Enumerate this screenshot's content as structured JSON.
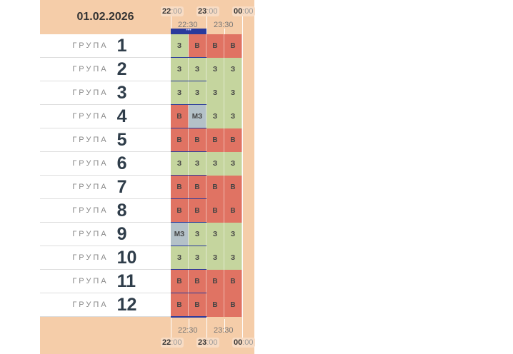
{
  "date": "01.02.2026",
  "hours": [
    {
      "h": "22",
      "m": ":00"
    },
    {
      "h": "23",
      "m": ":00"
    },
    {
      "h": "00",
      "m": ":00"
    }
  ],
  "halves": [
    "22:30",
    "23:30"
  ],
  "more_indicator": "•••",
  "group_word": "ГРУПА",
  "colors": {
    "З": "#c5d59e",
    "В": "#e07363",
    "МЗ": "#b4c1c8"
  },
  "groups": [
    {
      "n": "1",
      "cells": [
        "З",
        "В",
        "В",
        "В"
      ]
    },
    {
      "n": "2",
      "cells": [
        "З",
        "З",
        "З",
        "З"
      ]
    },
    {
      "n": "3",
      "cells": [
        "З",
        "З",
        "З",
        "З"
      ]
    },
    {
      "n": "4",
      "cells": [
        "В",
        "МЗ",
        "З",
        "З"
      ]
    },
    {
      "n": "5",
      "cells": [
        "В",
        "В",
        "В",
        "В"
      ]
    },
    {
      "n": "6",
      "cells": [
        "З",
        "З",
        "З",
        "З"
      ]
    },
    {
      "n": "7",
      "cells": [
        "В",
        "В",
        "В",
        "В"
      ]
    },
    {
      "n": "8",
      "cells": [
        "В",
        "В",
        "В",
        "В"
      ]
    },
    {
      "n": "9",
      "cells": [
        "МЗ",
        "З",
        "З",
        "З"
      ]
    },
    {
      "n": "10",
      "cells": [
        "З",
        "З",
        "З",
        "З"
      ]
    },
    {
      "n": "11",
      "cells": [
        "В",
        "В",
        "В",
        "В"
      ]
    },
    {
      "n": "12",
      "cells": [
        "В",
        "В",
        "В",
        "В"
      ]
    }
  ]
}
